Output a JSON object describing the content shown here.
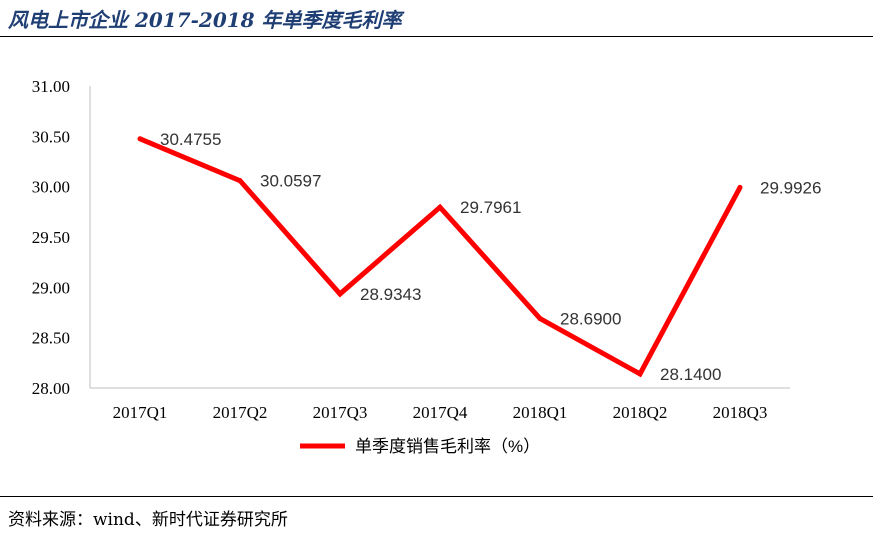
{
  "header": {
    "title": "风电上市企业 2017-2018 年单季度毛利率"
  },
  "footer": {
    "source": "资料来源：wind、新时代证券研究所"
  },
  "chart_data": {
    "type": "line",
    "title": "风电上市企业 2017-2018 年单季度毛利率",
    "categories": [
      "2017Q1",
      "2017Q2",
      "2017Q3",
      "2017Q4",
      "2018Q1",
      "2018Q2",
      "2018Q3"
    ],
    "series": [
      {
        "name": "单季度销售毛利率（%）",
        "values": [
          30.4755,
          30.0597,
          28.9343,
          29.7961,
          28.69,
          28.14,
          29.9926
        ],
        "labels": [
          "30.4755",
          "30.0597",
          "28.9343",
          "29.7961",
          "28.6900",
          "28.1400",
          "29.9926"
        ],
        "color": "#ff0000"
      }
    ],
    "ylim": [
      28.0,
      31.0
    ],
    "yticks": [
      "28.00",
      "28.50",
      "29.00",
      "29.50",
      "30.00",
      "30.50",
      "31.00"
    ],
    "xlabel": "",
    "ylabel": "",
    "grid": false,
    "legend": "bottom-center"
  }
}
